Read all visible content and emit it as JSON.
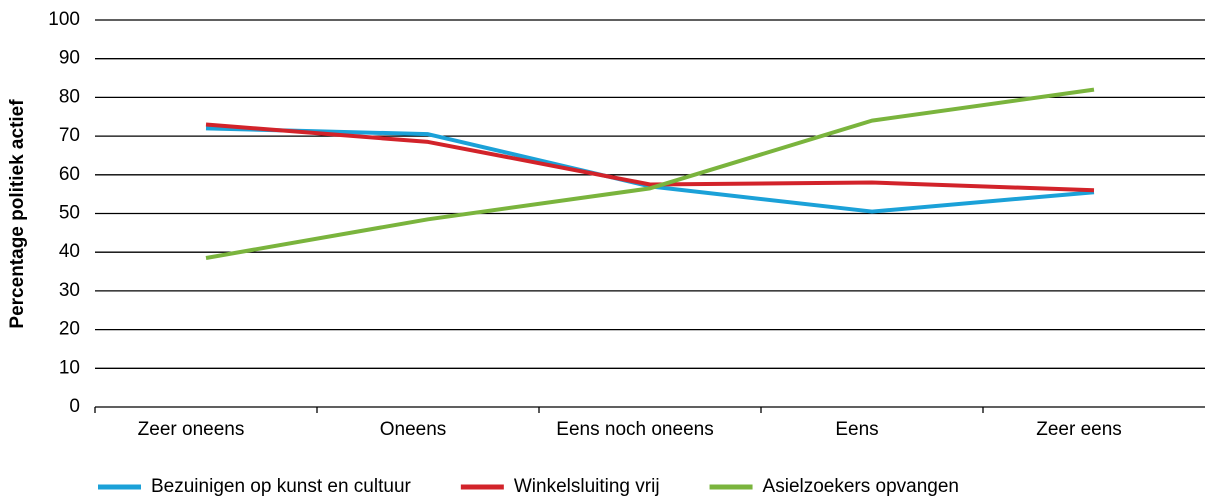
{
  "chart_data": {
    "type": "line",
    "y_label": "Percentage politiek actief",
    "categories": [
      "Zeer oneens",
      "Oneens",
      "Eens noch oneens",
      "Eens",
      "Zeer eens"
    ],
    "series": [
      {
        "name": "Bezuinigen op kunst en cultuur",
        "color": "#1ba1d8",
        "values": [
          72,
          70.5,
          57,
          50.5,
          55.5
        ]
      },
      {
        "name": "Winkelsluiting vrij",
        "color": "#d2232a",
        "values": [
          73,
          68.5,
          57.5,
          58,
          56
        ]
      },
      {
        "name": "Asielzoekers opvangen",
        "color": "#7ab43d",
        "values": [
          38.5,
          48.5,
          56.5,
          74,
          82
        ]
      }
    ],
    "ylim": [
      0,
      100
    ],
    "yticks": [
      0,
      10,
      20,
      30,
      40,
      50,
      60,
      70,
      80,
      90,
      100
    ],
    "grid": true,
    "legend": "bottom"
  }
}
